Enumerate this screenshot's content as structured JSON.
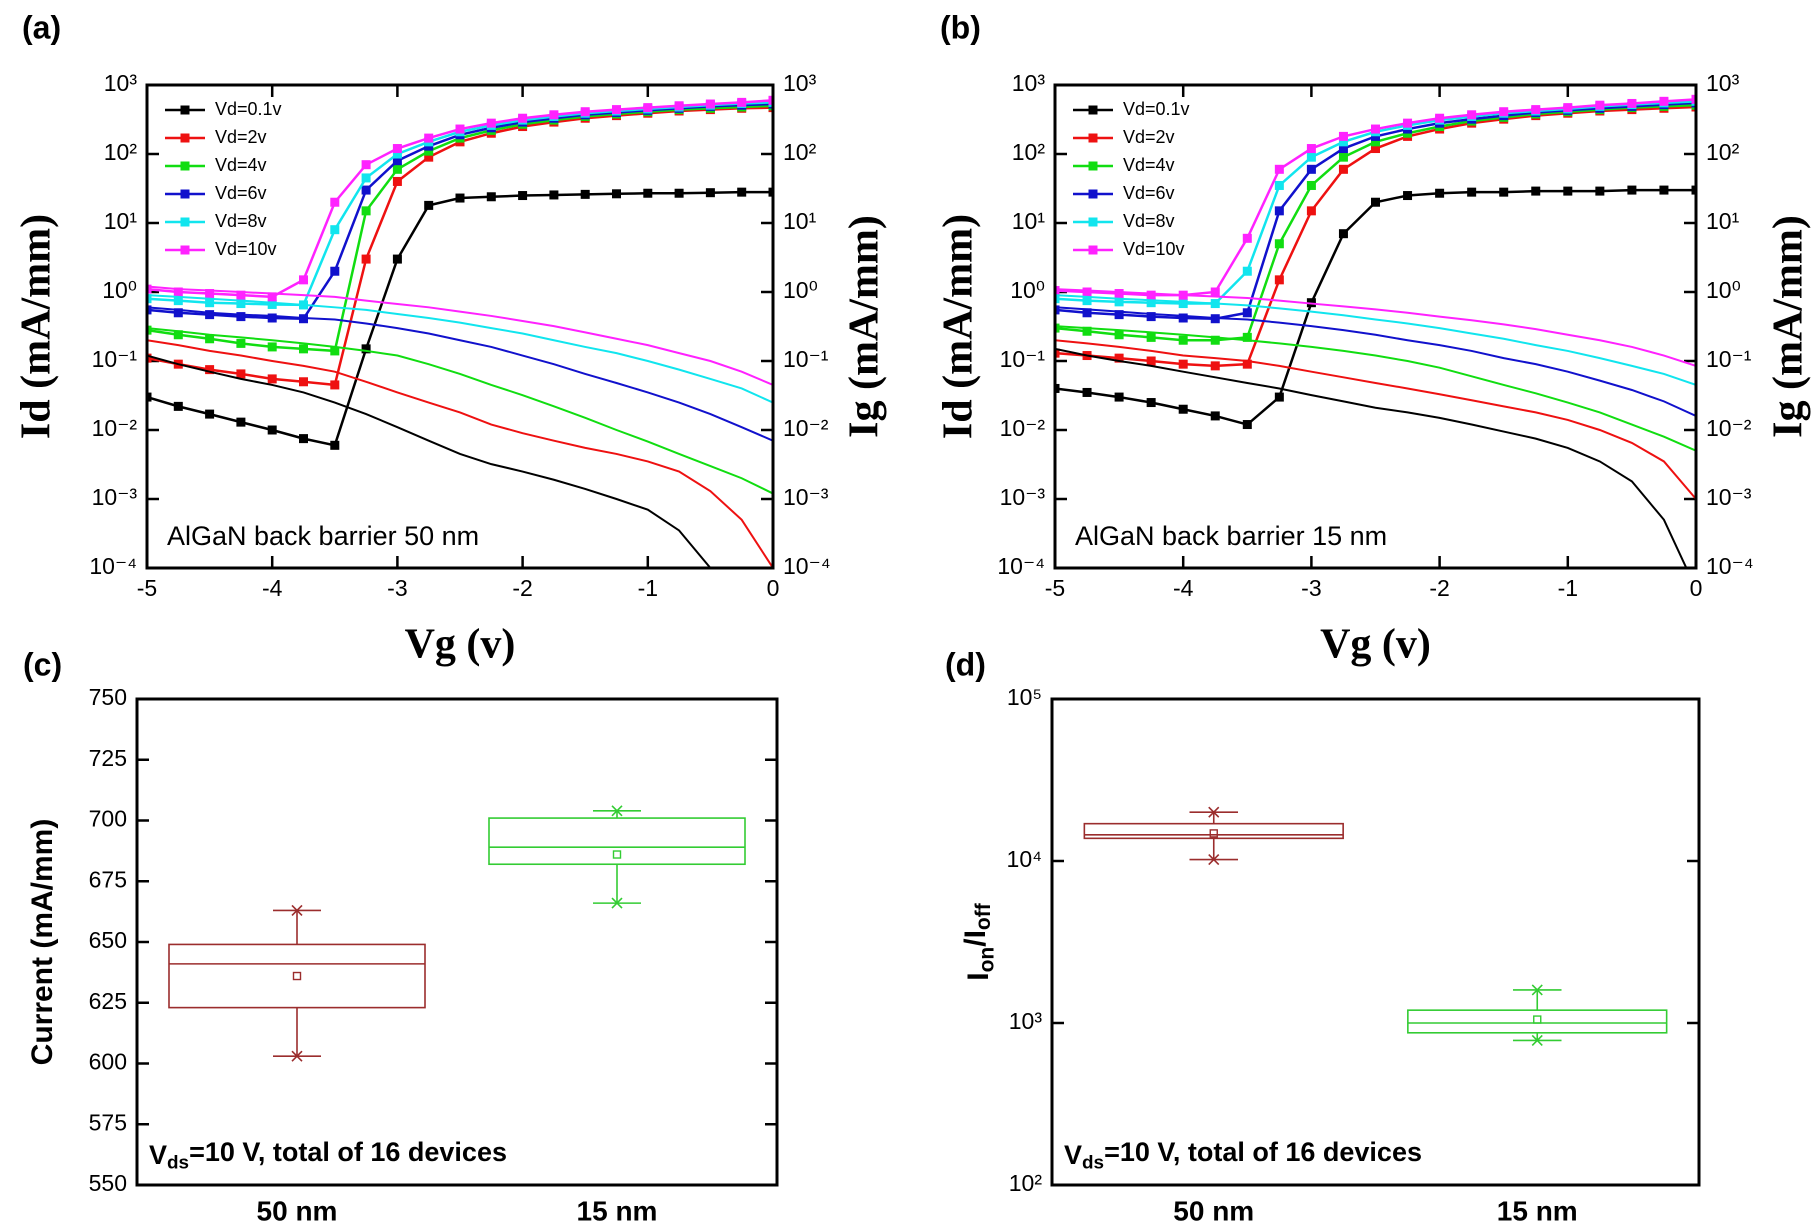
{
  "chart_data": [
    {
      "type": "line",
      "panel_label": "(a)",
      "annotation": "AlGaN back barrier 50 nm",
      "x_label": "Vg (v)",
      "y_label": "Id (mA/mm)",
      "y2_label": "Ig (mA/mm)",
      "log_y": true,
      "legend": "upper left",
      "x": [
        -5,
        -4.75,
        -4.5,
        -4.25,
        -4,
        -3.75,
        -3.5,
        -3.25,
        -3,
        -2.75,
        -2.5,
        -2.25,
        -2,
        -1.75,
        -1.5,
        -1.25,
        -1,
        -0.75,
        -0.5,
        -0.25,
        0
      ],
      "xlim": [
        -5,
        0
      ],
      "xticks": [
        -5,
        -4,
        -3,
        -2,
        -1,
        0
      ],
      "ylim": [
        0.0001,
        1000
      ],
      "yticks": [
        {
          "value": 0.0001,
          "label": "10⁻⁴"
        },
        {
          "value": 0.001,
          "label": "10⁻³"
        },
        {
          "value": 0.01,
          "label": "10⁻²"
        },
        {
          "value": 0.1,
          "label": "10⁻¹"
        },
        {
          "value": 1,
          "label": "10⁰"
        },
        {
          "value": 10,
          "label": "10¹"
        },
        {
          "value": 100,
          "label": "10²"
        },
        {
          "value": 1000,
          "label": "10³"
        }
      ],
      "y2lim": [
        0.0001,
        1000
      ],
      "y2ticks": [
        {
          "value": 0.0001,
          "label": "10⁻⁴"
        },
        {
          "value": 0.001,
          "label": "10⁻³"
        },
        {
          "value": 0.01,
          "label": "10⁻²"
        },
        {
          "value": 0.1,
          "label": "10⁻¹"
        },
        {
          "value": 1,
          "label": "10⁰"
        },
        {
          "value": 10,
          "label": "10¹"
        },
        {
          "value": 100,
          "label": "10²"
        },
        {
          "value": 1000,
          "label": "10³"
        }
      ],
      "series": [
        {
          "name": "Vd=0.1v",
          "color": "#000000",
          "marker": "square",
          "values": [
            0.03,
            0.022,
            0.017,
            0.013,
            0.01,
            0.0075,
            0.006,
            0.15,
            3,
            18,
            23,
            24,
            25,
            25.5,
            26,
            26.5,
            27,
            27,
            27.5,
            28,
            28
          ]
        },
        {
          "name": "Vd=2v",
          "color": "#ee1111",
          "marker": "square",
          "values": [
            0.11,
            0.09,
            0.075,
            0.065,
            0.055,
            0.05,
            0.045,
            3,
            40,
            90,
            150,
            200,
            250,
            290,
            330,
            360,
            390,
            420,
            440,
            460,
            470
          ]
        },
        {
          "name": "Vd=4v",
          "color": "#11dd11",
          "marker": "square",
          "values": [
            0.28,
            0.24,
            0.21,
            0.18,
            0.16,
            0.15,
            0.14,
            15,
            60,
            110,
            170,
            220,
            270,
            310,
            350,
            380,
            410,
            440,
            460,
            480,
            500
          ]
        },
        {
          "name": "Vd=6v",
          "color": "#1111cc",
          "marker": "square",
          "values": [
            0.55,
            0.5,
            0.47,
            0.44,
            0.42,
            0.41,
            2,
            30,
            80,
            130,
            190,
            240,
            290,
            330,
            370,
            400,
            430,
            460,
            490,
            510,
            530
          ]
        },
        {
          "name": "Vd=8v",
          "color": "#11e5ee",
          "marker": "square",
          "values": [
            0.8,
            0.75,
            0.7,
            0.68,
            0.66,
            0.65,
            8,
            45,
            100,
            150,
            210,
            260,
            310,
            350,
            390,
            420,
            450,
            480,
            510,
            540,
            560
          ]
        },
        {
          "name": "Vd=10v",
          "color": "#ff22ff",
          "marker": "square",
          "values": [
            1.1,
            1,
            0.95,
            0.9,
            0.85,
            1.5,
            20,
            70,
            120,
            170,
            230,
            280,
            330,
            370,
            410,
            440,
            470,
            500,
            530,
            560,
            600
          ]
        },
        {
          "color": "#000000",
          "marker": "none",
          "axis": "y2",
          "values": [
            0.12,
            0.09,
            0.07,
            0.055,
            0.045,
            0.035,
            0.025,
            0.017,
            0.011,
            0.007,
            0.0045,
            0.0032,
            0.0025,
            0.0019,
            0.0014,
            0.001,
            0.0007,
            0.00035,
            0.0001,
            3e-05,
            1e-05
          ]
        },
        {
          "color": "#ee1111",
          "marker": "none",
          "axis": "y2",
          "values": [
            0.2,
            0.17,
            0.14,
            0.12,
            0.1,
            0.085,
            0.07,
            0.05,
            0.035,
            0.025,
            0.018,
            0.012,
            0.009,
            0.007,
            0.0055,
            0.0045,
            0.0035,
            0.0025,
            0.0013,
            0.0005,
            0.0001
          ]
        },
        {
          "color": "#11dd11",
          "marker": "none",
          "axis": "y2",
          "values": [
            0.3,
            0.27,
            0.24,
            0.22,
            0.2,
            0.18,
            0.16,
            0.14,
            0.12,
            0.09,
            0.065,
            0.045,
            0.032,
            0.022,
            0.015,
            0.01,
            0.0068,
            0.0045,
            0.003,
            0.002,
            0.0012
          ]
        },
        {
          "color": "#1111cc",
          "marker": "none",
          "axis": "y2",
          "values": [
            0.6,
            0.55,
            0.5,
            0.47,
            0.45,
            0.42,
            0.4,
            0.35,
            0.3,
            0.25,
            0.2,
            0.16,
            0.12,
            0.09,
            0.065,
            0.048,
            0.035,
            0.025,
            0.017,
            0.011,
            0.007
          ]
        },
        {
          "color": "#11e5ee",
          "marker": "none",
          "axis": "y2",
          "values": [
            0.9,
            0.85,
            0.8,
            0.75,
            0.7,
            0.65,
            0.6,
            0.55,
            0.48,
            0.42,
            0.36,
            0.3,
            0.25,
            0.2,
            0.16,
            0.13,
            0.1,
            0.075,
            0.055,
            0.04,
            0.025
          ]
        },
        {
          "color": "#ff22ff",
          "marker": "none",
          "axis": "y2",
          "values": [
            1.2,
            1.1,
            1.05,
            1,
            0.95,
            0.9,
            0.85,
            0.75,
            0.67,
            0.6,
            0.52,
            0.45,
            0.38,
            0.32,
            0.26,
            0.21,
            0.17,
            0.13,
            0.1,
            0.07,
            0.045
          ]
        }
      ]
    },
    {
      "type": "line",
      "panel_label": "(b)",
      "annotation": "AlGaN back barrier 15 nm",
      "x_label": "Vg (v)",
      "y_label": "Id (mA/mm)",
      "y2_label": "Ig (mA/mm)",
      "log_y": true,
      "legend": "upper left",
      "x": [
        -5,
        -4.75,
        -4.5,
        -4.25,
        -4,
        -3.75,
        -3.5,
        -3.25,
        -3,
        -2.75,
        -2.5,
        -2.25,
        -2,
        -1.75,
        -1.5,
        -1.25,
        -1,
        -0.75,
        -0.5,
        -0.25,
        0
      ],
      "xlim": [
        -5,
        0
      ],
      "xticks": [
        -5,
        -4,
        -3,
        -2,
        -1,
        0
      ],
      "ylim": [
        0.0001,
        1000
      ],
      "yticks": [
        {
          "value": 0.0001,
          "label": "10⁻⁴"
        },
        {
          "value": 0.001,
          "label": "10⁻³"
        },
        {
          "value": 0.01,
          "label": "10⁻²"
        },
        {
          "value": 0.1,
          "label": "10⁻¹"
        },
        {
          "value": 1,
          "label": "10⁰"
        },
        {
          "value": 10,
          "label": "10¹"
        },
        {
          "value": 100,
          "label": "10²"
        },
        {
          "value": 1000,
          "label": "10³"
        }
      ],
      "y2lim": [
        0.0001,
        1000
      ],
      "y2ticks": [
        {
          "value": 0.0001,
          "label": "10⁻⁴"
        },
        {
          "value": 0.001,
          "label": "10⁻³"
        },
        {
          "value": 0.01,
          "label": "10⁻²"
        },
        {
          "value": 0.1,
          "label": "10⁻¹"
        },
        {
          "value": 1,
          "label": "10⁰"
        },
        {
          "value": 10,
          "label": "10¹"
        },
        {
          "value": 100,
          "label": "10²"
        },
        {
          "value": 1000,
          "label": "10³"
        }
      ],
      "series": [
        {
          "name": "Vd=0.1v",
          "color": "#000000",
          "marker": "square",
          "values": [
            0.04,
            0.035,
            0.03,
            0.025,
            0.02,
            0.016,
            0.012,
            0.03,
            0.7,
            7,
            20,
            25,
            27,
            28,
            28,
            29,
            29,
            29,
            30,
            30,
            30
          ]
        },
        {
          "name": "Vd=2v",
          "color": "#ee1111",
          "marker": "square",
          "values": [
            0.13,
            0.12,
            0.11,
            0.1,
            0.09,
            0.085,
            0.09,
            1.5,
            15,
            60,
            120,
            180,
            230,
            280,
            320,
            360,
            390,
            420,
            440,
            460,
            480
          ]
        },
        {
          "name": "Vd=4v",
          "color": "#11dd11",
          "marker": "square",
          "values": [
            0.3,
            0.27,
            0.24,
            0.22,
            0.2,
            0.2,
            0.22,
            5,
            35,
            90,
            150,
            200,
            250,
            300,
            340,
            380,
            410,
            440,
            470,
            490,
            510
          ]
        },
        {
          "name": "Vd=6v",
          "color": "#1111cc",
          "marker": "square",
          "values": [
            0.55,
            0.5,
            0.47,
            0.44,
            0.42,
            0.41,
            0.5,
            15,
            60,
            120,
            180,
            230,
            280,
            320,
            360,
            400,
            430,
            460,
            490,
            520,
            550
          ]
        },
        {
          "name": "Vd=8v",
          "color": "#11e5ee",
          "marker": "square",
          "values": [
            0.8,
            0.75,
            0.72,
            0.7,
            0.68,
            0.68,
            2,
            35,
            90,
            150,
            210,
            260,
            310,
            350,
            390,
            420,
            450,
            490,
            520,
            550,
            580
          ]
        },
        {
          "name": "Vd=10v",
          "color": "#ff22ff",
          "marker": "square",
          "values": [
            1.05,
            1,
            0.95,
            0.9,
            0.9,
            1,
            6,
            60,
            120,
            180,
            230,
            280,
            330,
            370,
            410,
            440,
            470,
            510,
            540,
            580,
            620
          ]
        },
        {
          "color": "#000000",
          "marker": "none",
          "axis": "y2",
          "values": [
            0.15,
            0.12,
            0.1,
            0.085,
            0.07,
            0.058,
            0.048,
            0.04,
            0.032,
            0.026,
            0.021,
            0.018,
            0.015,
            0.012,
            0.0095,
            0.0075,
            0.0055,
            0.0035,
            0.0018,
            0.0005,
            5e-05
          ]
        },
        {
          "color": "#ee1111",
          "marker": "none",
          "axis": "y2",
          "values": [
            0.2,
            0.18,
            0.16,
            0.14,
            0.12,
            0.11,
            0.1,
            0.085,
            0.07,
            0.058,
            0.048,
            0.04,
            0.033,
            0.027,
            0.022,
            0.018,
            0.014,
            0.01,
            0.0065,
            0.0035,
            0.001
          ]
        },
        {
          "color": "#11dd11",
          "marker": "none",
          "axis": "y2",
          "values": [
            0.32,
            0.3,
            0.28,
            0.26,
            0.24,
            0.22,
            0.2,
            0.18,
            0.16,
            0.14,
            0.12,
            0.1,
            0.08,
            0.06,
            0.045,
            0.034,
            0.025,
            0.018,
            0.012,
            0.008,
            0.005
          ]
        },
        {
          "color": "#1111cc",
          "marker": "none",
          "axis": "y2",
          "values": [
            0.6,
            0.56,
            0.52,
            0.48,
            0.45,
            0.42,
            0.4,
            0.36,
            0.32,
            0.28,
            0.24,
            0.2,
            0.17,
            0.14,
            0.11,
            0.09,
            0.07,
            0.052,
            0.038,
            0.026,
            0.016
          ]
        },
        {
          "color": "#11e5ee",
          "marker": "none",
          "axis": "y2",
          "values": [
            0.9,
            0.85,
            0.8,
            0.76,
            0.72,
            0.68,
            0.64,
            0.58,
            0.52,
            0.46,
            0.4,
            0.35,
            0.3,
            0.25,
            0.21,
            0.17,
            0.14,
            0.11,
            0.085,
            0.065,
            0.045
          ]
        },
        {
          "color": "#ff22ff",
          "marker": "none",
          "axis": "y2",
          "values": [
            1.1,
            1.05,
            1,
            0.95,
            0.9,
            0.86,
            0.82,
            0.75,
            0.68,
            0.62,
            0.56,
            0.5,
            0.44,
            0.39,
            0.34,
            0.29,
            0.24,
            0.2,
            0.16,
            0.12,
            0.085
          ]
        }
      ]
    },
    {
      "type": "box",
      "panel_label": "(c)",
      "annotation": [
        "V",
        "ds",
        "=10 V, total of 16 devices"
      ],
      "y_label": "Current (mA/mm)",
      "log_y": false,
      "categories": [
        "50 nm",
        "15 nm"
      ],
      "ylim": [
        550,
        750
      ],
      "yticks": [
        550,
        575,
        600,
        625,
        650,
        675,
        700,
        725,
        750
      ],
      "boxes": [
        {
          "color": "#9b2d2d",
          "min": 603,
          "q1": 623,
          "median": 641,
          "q3": 649,
          "max": 663,
          "mean": 636
        },
        {
          "color": "#33cc33",
          "min": 666,
          "q1": 682,
          "median": 689,
          "q3": 701,
          "max": 704,
          "mean": 686
        }
      ]
    },
    {
      "type": "box",
      "panel_label": "(d)",
      "annotation": [
        "V",
        "ds",
        "=10 V, total of 16 devices"
      ],
      "y_label": [
        "I",
        "on",
        "/I",
        "off"
      ],
      "log_y": true,
      "categories": [
        "50 nm",
        "15 nm"
      ],
      "ylim": [
        100,
        100000
      ],
      "yticks": [
        {
          "value": 100,
          "label": "10²"
        },
        {
          "value": 1000,
          "label": "10³"
        },
        {
          "value": 10000,
          "label": "10⁴"
        },
        {
          "value": 100000,
          "label": "10⁵"
        }
      ],
      "boxes": [
        {
          "color": "#9b2d2d",
          "min": 10200,
          "q1": 13800,
          "median": 14500,
          "q3": 17000,
          "max": 20000,
          "mean": 14800
        },
        {
          "color": "#33cc33",
          "min": 780,
          "q1": 870,
          "median": 1000,
          "q3": 1200,
          "max": 1600,
          "mean": 1050
        }
      ]
    }
  ]
}
